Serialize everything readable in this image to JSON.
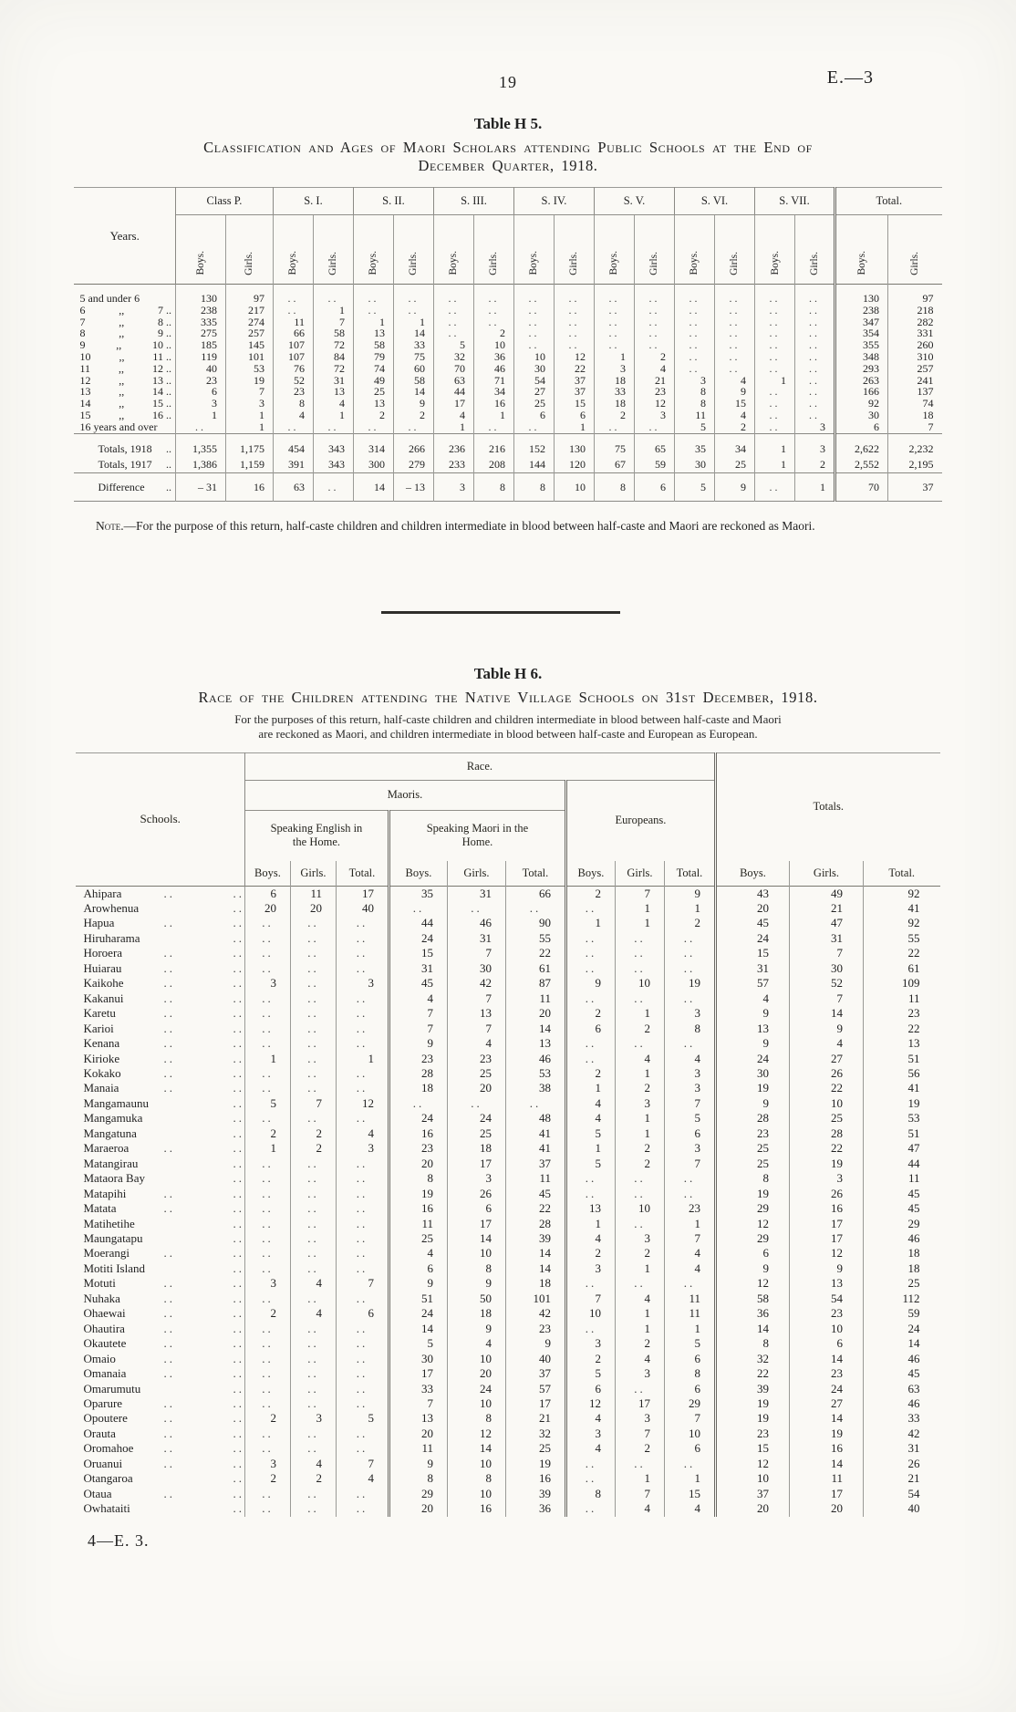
{
  "page": {
    "number": "19",
    "doc_ref": "E.—3",
    "footer": "4—E. 3."
  },
  "table_h5": {
    "title": "Table H 5.",
    "caption_line1": "Classification and Ages of Maori Scholars attending Public Schools at the End of",
    "caption_line2": "December Quarter, 1918.",
    "years_header": "Years.",
    "col_groups": [
      "Class P.",
      "S. I.",
      "S. II.",
      "S. III.",
      "S. IV.",
      "S. V.",
      "S. VI.",
      "S. VII.",
      "Total."
    ],
    "sub_headers": [
      "Boys.",
      "Girls."
    ],
    "rows": [
      {
        "parts": [
          "5 and under 6"
        ],
        "values": [
          "130",
          "97",
          "..",
          "..",
          "..",
          "..",
          "..",
          "..",
          "..",
          "..",
          "..",
          "..",
          "..",
          "..",
          "..",
          "..",
          "130",
          "97"
        ]
      },
      {
        "parts": [
          "6",
          ",,",
          "7 .."
        ],
        "values": [
          "238",
          "217",
          "..",
          "1",
          "..",
          "..",
          "..",
          "..",
          "..",
          "..",
          "..",
          "..",
          "..",
          "..",
          "..",
          "..",
          "238",
          "218"
        ]
      },
      {
        "parts": [
          "7",
          ",,",
          "8 .."
        ],
        "values": [
          "335",
          "274",
          "11",
          "7",
          "1",
          "1",
          "..",
          "..",
          "..",
          "..",
          "..",
          "..",
          "..",
          "..",
          "..",
          "..",
          "347",
          "282"
        ]
      },
      {
        "parts": [
          "8",
          ",,",
          "9 .."
        ],
        "values": [
          "275",
          "257",
          "66",
          "58",
          "13",
          "14",
          "..",
          "2",
          "..",
          "..",
          "..",
          "..",
          "..",
          "..",
          "..",
          "..",
          "354",
          "331"
        ]
      },
      {
        "parts": [
          "9",
          ",,",
          "10 .."
        ],
        "values": [
          "185",
          "145",
          "107",
          "72",
          "58",
          "33",
          "5",
          "10",
          "..",
          "..",
          "..",
          "..",
          "..",
          "..",
          "..",
          "..",
          "355",
          "260"
        ]
      },
      {
        "parts": [
          "10",
          ",,",
          "11 .."
        ],
        "values": [
          "119",
          "101",
          "107",
          "84",
          "79",
          "75",
          "32",
          "36",
          "10",
          "12",
          "1",
          "2",
          "..",
          "..",
          "..",
          "..",
          "348",
          "310"
        ]
      },
      {
        "parts": [
          "11",
          ",,",
          "12 .."
        ],
        "values": [
          "40",
          "53",
          "76",
          "72",
          "74",
          "60",
          "70",
          "46",
          "30",
          "22",
          "3",
          "4",
          "..",
          "..",
          "..",
          "..",
          "293",
          "257"
        ]
      },
      {
        "parts": [
          "12",
          ",,",
          "13 .."
        ],
        "values": [
          "23",
          "19",
          "52",
          "31",
          "49",
          "58",
          "63",
          "71",
          "54",
          "37",
          "18",
          "21",
          "3",
          "4",
          "1",
          "..",
          "263",
          "241"
        ]
      },
      {
        "parts": [
          "13",
          ",,",
          "14 .."
        ],
        "values": [
          "6",
          "7",
          "23",
          "13",
          "25",
          "14",
          "44",
          "34",
          "27",
          "37",
          "33",
          "23",
          "8",
          "9",
          "..",
          "..",
          "166",
          "137"
        ]
      },
      {
        "parts": [
          "14",
          ",,",
          "15 .."
        ],
        "values": [
          "3",
          "3",
          "8",
          "4",
          "13",
          "9",
          "17",
          "16",
          "25",
          "15",
          "18",
          "12",
          "8",
          "15",
          "..",
          "..",
          "92",
          "74"
        ]
      },
      {
        "parts": [
          "15",
          ",,",
          "16 .."
        ],
        "values": [
          "1",
          "1",
          "4",
          "1",
          "2",
          "2",
          "4",
          "1",
          "6",
          "6",
          "2",
          "3",
          "11",
          "4",
          "..",
          "..",
          "30",
          "18"
        ]
      },
      {
        "parts": [
          "16 years and over"
        ],
        "values": [
          "..",
          "1",
          "..",
          "..",
          "..",
          "..",
          "1",
          "..",
          "..",
          "1",
          "..",
          "..",
          "5",
          "2",
          "..",
          "3",
          "6",
          "7"
        ]
      }
    ],
    "totals": [
      {
        "parts": [
          "Totals, 1918",
          ".."
        ],
        "values": [
          "1,355",
          "1,175",
          "454",
          "343",
          "314",
          "266",
          "236",
          "216",
          "152",
          "130",
          "75",
          "65",
          "35",
          "34",
          "1",
          "3",
          "2,622",
          "2,232"
        ]
      },
      {
        "parts": [
          "Totals, 1917",
          ".."
        ],
        "values": [
          "1,386",
          "1,159",
          "391",
          "343",
          "300",
          "279",
          "233",
          "208",
          "144",
          "120",
          "67",
          "59",
          "30",
          "25",
          "1",
          "2",
          "2,552",
          "2,195"
        ]
      }
    ],
    "difference": {
      "parts": [
        "Difference",
        ".."
      ],
      "values": [
        "– 31",
        "16",
        "63",
        "..",
        "14",
        "– 13",
        "3",
        "8",
        "8",
        "10",
        "8",
        "6",
        "5",
        "9",
        "..",
        "1",
        "70",
        "37"
      ]
    },
    "note_label": "Note.",
    "note_body": "—For the purpose of this return, half-caste children and children intermediate in blood between half-caste and Maori are reckoned as Maori."
  },
  "table_h6": {
    "title": "Table H 6.",
    "caption": "Race of the Children attending the Native Village Schools on 31st December, 1918.",
    "subcaption_line1": "For the purposes of this return, half-caste children and children intermediate in blood between half-caste and Maori",
    "subcaption_line2": "are reckoned as Maori, and children intermediate in blood between half-caste and European as European.",
    "schools_header": "Schools.",
    "race_header": "Race.",
    "maoris_header": "Maoris.",
    "speaking_english_header": "Speaking English in the Home.",
    "speaking_maori_header": "Speaking Maori in the Home.",
    "europeans_header": "Europeans.",
    "totals_header": "Totals.",
    "sub_headers": [
      "Boys.",
      "Girls.",
      "Total."
    ],
    "rows": [
      {
        "school": "Ahipara",
        "values": [
          "6",
          "11",
          "17",
          "35",
          "31",
          "66",
          "2",
          "7",
          "9",
          "43",
          "49",
          "92"
        ]
      },
      {
        "school": "Arowhenua",
        "values": [
          "20",
          "20",
          "40",
          "..",
          "..",
          "..",
          "..",
          "1",
          "1",
          "20",
          "21",
          "41"
        ]
      },
      {
        "school": "Hapua",
        "values": [
          "..",
          "..",
          "..",
          "44",
          "46",
          "90",
          "1",
          "1",
          "2",
          "45",
          "47",
          "92"
        ]
      },
      {
        "school": "Hiruharama",
        "values": [
          "..",
          "..",
          "..",
          "24",
          "31",
          "55",
          "..",
          "..",
          "..",
          "24",
          "31",
          "55"
        ]
      },
      {
        "school": "Horoera",
        "values": [
          "..",
          "..",
          "..",
          "15",
          "7",
          "22",
          "..",
          "..",
          "..",
          "15",
          "7",
          "22"
        ]
      },
      {
        "school": "Huiarau",
        "values": [
          "..",
          "..",
          "..",
          "31",
          "30",
          "61",
          "..",
          "..",
          "..",
          "31",
          "30",
          "61"
        ]
      },
      {
        "school": "Kaikohe",
        "values": [
          "3",
          "..",
          "3",
          "45",
          "42",
          "87",
          "9",
          "10",
          "19",
          "57",
          "52",
          "109"
        ]
      },
      {
        "school": "Kakanui",
        "values": [
          "..",
          "..",
          "..",
          "4",
          "7",
          "11",
          "..",
          "..",
          "..",
          "4",
          "7",
          "11"
        ]
      },
      {
        "school": "Karetu",
        "values": [
          "..",
          "..",
          "..",
          "7",
          "13",
          "20",
          "2",
          "1",
          "3",
          "9",
          "14",
          "23"
        ]
      },
      {
        "school": "Karioi",
        "values": [
          "..",
          "..",
          "..",
          "7",
          "7",
          "14",
          "6",
          "2",
          "8",
          "13",
          "9",
          "22"
        ]
      },
      {
        "school": "Kenana",
        "values": [
          "..",
          "..",
          "..",
          "9",
          "4",
          "13",
          "..",
          "..",
          "..",
          "9",
          "4",
          "13"
        ]
      },
      {
        "school": "Kirioke",
        "values": [
          "1",
          "..",
          "1",
          "23",
          "23",
          "46",
          "..",
          "4",
          "4",
          "24",
          "27",
          "51"
        ]
      },
      {
        "school": "Kokako",
        "values": [
          "..",
          "..",
          "..",
          "28",
          "25",
          "53",
          "2",
          "1",
          "3",
          "30",
          "26",
          "56"
        ]
      },
      {
        "school": "Manaia",
        "values": [
          "..",
          "..",
          "..",
          "18",
          "20",
          "38",
          "1",
          "2",
          "3",
          "19",
          "22",
          "41"
        ]
      },
      {
        "school": "Mangamaunu",
        "values": [
          "5",
          "7",
          "12",
          "..",
          "..",
          "..",
          "4",
          "3",
          "7",
          "9",
          "10",
          "19"
        ]
      },
      {
        "school": "Mangamuka",
        "values": [
          "..",
          "..",
          "..",
          "24",
          "24",
          "48",
          "4",
          "1",
          "5",
          "28",
          "25",
          "53"
        ]
      },
      {
        "school": "Mangatuna",
        "values": [
          "2",
          "2",
          "4",
          "16",
          "25",
          "41",
          "5",
          "1",
          "6",
          "23",
          "28",
          "51"
        ]
      },
      {
        "school": "Maraeroa",
        "values": [
          "1",
          "2",
          "3",
          "23",
          "18",
          "41",
          "1",
          "2",
          "3",
          "25",
          "22",
          "47"
        ]
      },
      {
        "school": "Matangirau",
        "values": [
          "..",
          "..",
          "..",
          "20",
          "17",
          "37",
          "5",
          "2",
          "7",
          "25",
          "19",
          "44"
        ]
      },
      {
        "school": "Mataora Bay",
        "values": [
          "..",
          "..",
          "..",
          "8",
          "3",
          "11",
          "..",
          "..",
          "..",
          "8",
          "3",
          "11"
        ]
      },
      {
        "school": "Matapihi",
        "values": [
          "..",
          "..",
          "..",
          "19",
          "26",
          "45",
          "..",
          "..",
          "..",
          "19",
          "26",
          "45"
        ]
      },
      {
        "school": "Matata",
        "values": [
          "..",
          "..",
          "..",
          "16",
          "6",
          "22",
          "13",
          "10",
          "23",
          "29",
          "16",
          "45"
        ]
      },
      {
        "school": "Matihetihe",
        "values": [
          "..",
          "..",
          "..",
          "11",
          "17",
          "28",
          "1",
          "..",
          "1",
          "12",
          "17",
          "29"
        ]
      },
      {
        "school": "Maungatapu",
        "values": [
          "..",
          "..",
          "..",
          "25",
          "14",
          "39",
          "4",
          "3",
          "7",
          "29",
          "17",
          "46"
        ]
      },
      {
        "school": "Moerangi",
        "values": [
          "..",
          "..",
          "..",
          "4",
          "10",
          "14",
          "2",
          "2",
          "4",
          "6",
          "12",
          "18"
        ]
      },
      {
        "school": "Motiti Island",
        "values": [
          "..",
          "..",
          "..",
          "6",
          "8",
          "14",
          "3",
          "1",
          "4",
          "9",
          "9",
          "18"
        ]
      },
      {
        "school": "Motuti",
        "values": [
          "3",
          "4",
          "7",
          "9",
          "9",
          "18",
          "..",
          "..",
          "..",
          "12",
          "13",
          "25"
        ]
      },
      {
        "school": "Nuhaka",
        "values": [
          "..",
          "..",
          "..",
          "51",
          "50",
          "101",
          "7",
          "4",
          "11",
          "58",
          "54",
          "112"
        ]
      },
      {
        "school": "Ohaewai",
        "values": [
          "2",
          "4",
          "6",
          "24",
          "18",
          "42",
          "10",
          "1",
          "11",
          "36",
          "23",
          "59"
        ]
      },
      {
        "school": "Ohautira",
        "values": [
          "..",
          "..",
          "..",
          "14",
          "9",
          "23",
          "..",
          "1",
          "1",
          "14",
          "10",
          "24"
        ]
      },
      {
        "school": "Okautete",
        "values": [
          "..",
          "..",
          "..",
          "5",
          "4",
          "9",
          "3",
          "2",
          "5",
          "8",
          "6",
          "14"
        ]
      },
      {
        "school": "Omaio",
        "values": [
          "..",
          "..",
          "..",
          "30",
          "10",
          "40",
          "2",
          "4",
          "6",
          "32",
          "14",
          "46"
        ]
      },
      {
        "school": "Omanaia",
        "values": [
          "..",
          "..",
          "..",
          "17",
          "20",
          "37",
          "5",
          "3",
          "8",
          "22",
          "23",
          "45"
        ]
      },
      {
        "school": "Omarumutu",
        "values": [
          "..",
          "..",
          "..",
          "33",
          "24",
          "57",
          "6",
          "..",
          "6",
          "39",
          "24",
          "63"
        ]
      },
      {
        "school": "Oparure",
        "values": [
          "..",
          "..",
          "..",
          "7",
          "10",
          "17",
          "12",
          "17",
          "29",
          "19",
          "27",
          "46"
        ]
      },
      {
        "school": "Opoutere",
        "values": [
          "2",
          "3",
          "5",
          "13",
          "8",
          "21",
          "4",
          "3",
          "7",
          "19",
          "14",
          "33"
        ]
      },
      {
        "school": "Orauta",
        "values": [
          "..",
          "..",
          "..",
          "20",
          "12",
          "32",
          "3",
          "7",
          "10",
          "23",
          "19",
          "42"
        ]
      },
      {
        "school": "Oromahoe",
        "values": [
          "..",
          "..",
          "..",
          "11",
          "14",
          "25",
          "4",
          "2",
          "6",
          "15",
          "16",
          "31"
        ]
      },
      {
        "school": "Oruanui",
        "values": [
          "3",
          "4",
          "7",
          "9",
          "10",
          "19",
          "..",
          "..",
          "..",
          "12",
          "14",
          "26"
        ]
      },
      {
        "school": "Otangaroa",
        "values": [
          "2",
          "2",
          "4",
          "8",
          "8",
          "16",
          "..",
          "1",
          "1",
          "10",
          "11",
          "21"
        ]
      },
      {
        "school": "Otaua",
        "values": [
          "..",
          "..",
          "..",
          "29",
          "10",
          "39",
          "8",
          "7",
          "15",
          "37",
          "17",
          "54"
        ]
      },
      {
        "school": "Owhataiti",
        "values": [
          "..",
          "..",
          "..",
          "20",
          "16",
          "36",
          "..",
          "4",
          "4",
          "20",
          "20",
          "40"
        ]
      }
    ]
  }
}
